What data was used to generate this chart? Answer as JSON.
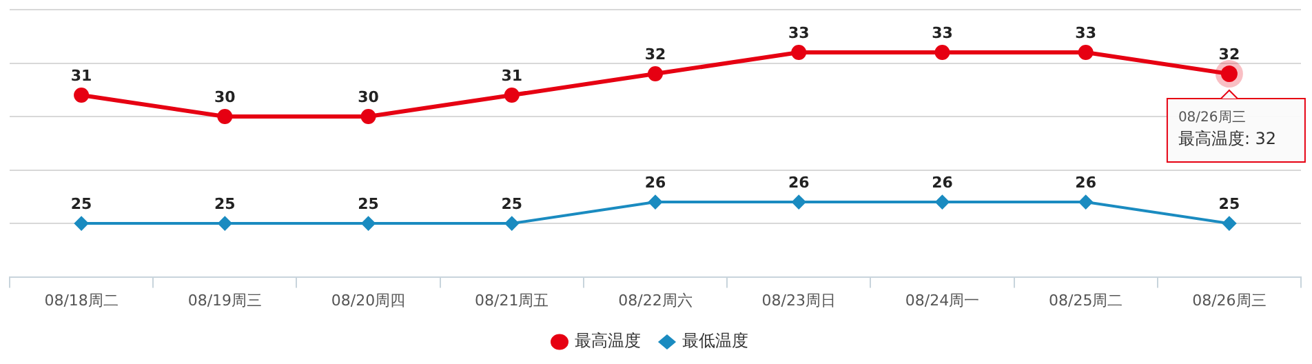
{
  "chart_data": {
    "type": "line",
    "categories": [
      "08/18周二",
      "08/19周三",
      "08/20周四",
      "08/21周五",
      "08/22周六",
      "08/23周日",
      "08/24周一",
      "08/25周二",
      "08/26周三"
    ],
    "series": [
      {
        "name": "最高温度",
        "color": "#e60012",
        "marker": "circle",
        "values": [
          31,
          30,
          30,
          31,
          32,
          33,
          33,
          33,
          32
        ]
      },
      {
        "name": "最低温度",
        "color": "#1a8bc0",
        "marker": "diamond",
        "values": [
          25,
          25,
          25,
          25,
          26,
          26,
          26,
          26,
          25
        ]
      }
    ],
    "ylim": [
      22.5,
      35
    ],
    "yticks": [
      {
        "value": 22.5,
        "label": null
      },
      {
        "value": 25,
        "label": null
      },
      {
        "value": 27.5,
        "label": null
      },
      {
        "value": 30,
        "label": null
      },
      {
        "value": 32.5,
        "label": null
      },
      {
        "value": 35,
        "label": null
      }
    ],
    "tick_labels": "x",
    "grid": "y",
    "legend": "bottom",
    "data_labels": true,
    "line_style": "solid",
    "annotations": [
      {
        "text": "08/26周三",
        "x": "08/26周三",
        "y": 32
      },
      "最高温度: 32"
    ]
  }
}
